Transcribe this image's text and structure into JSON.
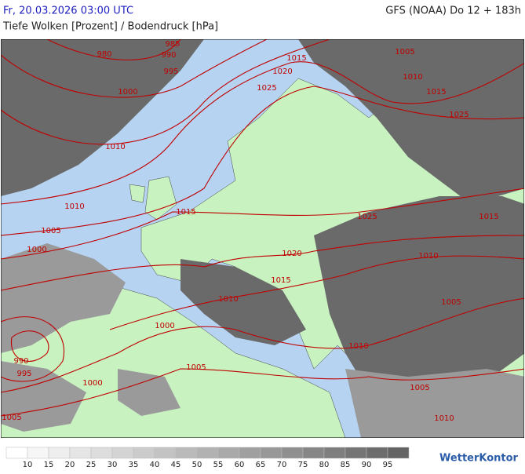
{
  "header": {
    "left": "Fr, 20.03.2026 03:00 UTC",
    "right": "GFS (NOAA) Do 12 + 183h",
    "subtitle": "Tiefe Wolken [Prozent] / Bodendruck [hPa]"
  },
  "isobar_labels": [
    985,
    990,
    980,
    995,
    1000,
    1010,
    1015,
    1020,
    1025,
    1005,
    1010,
    1015,
    1025,
    1010,
    1015,
    1005,
    1000,
    1025,
    1015,
    1020,
    1010,
    1015,
    1010,
    1005,
    1000,
    1010,
    990,
    995,
    1005,
    1000,
    1005,
    1005,
    1010
  ],
  "legend": {
    "labels": [
      10,
      15,
      20,
      25,
      30,
      35,
      40,
      45,
      50,
      55,
      60,
      65,
      70,
      75,
      80,
      85,
      90,
      95
    ]
  },
  "logo": "WetterKontor"
}
